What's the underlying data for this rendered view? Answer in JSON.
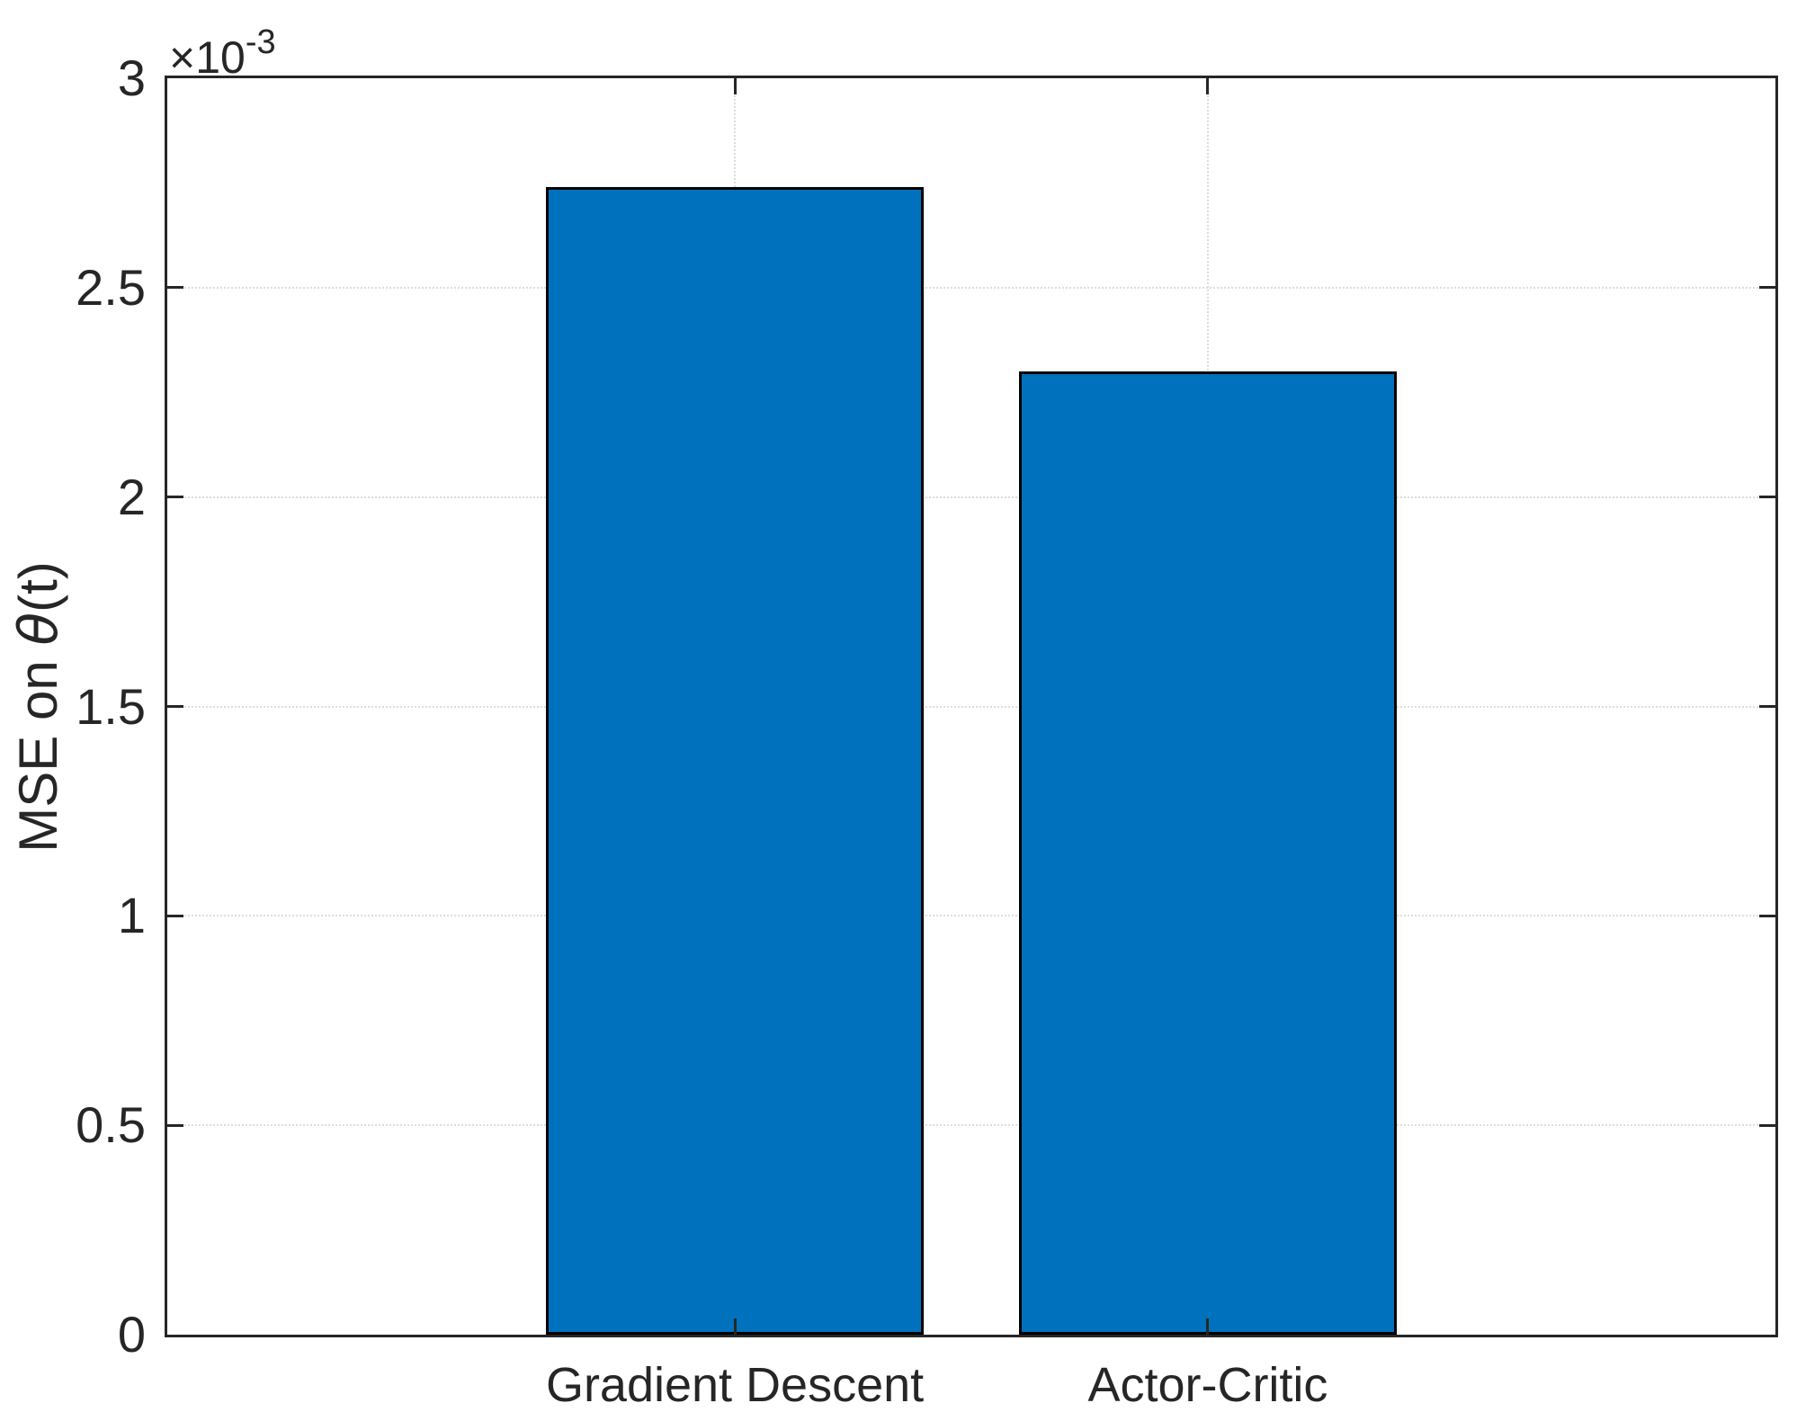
{
  "chart_data": {
    "type": "bar",
    "categories": [
      "Gradient Descent",
      "Actor-Critic"
    ],
    "values": [
      0.00274,
      0.0023
    ],
    "title": "",
    "xlabel": "",
    "ylabel": "MSE on θ(t)",
    "ylabel_parts": {
      "prefix": "MSE on ",
      "theta": "θ",
      "suffix": "(t)"
    },
    "ylim": [
      0,
      0.003
    ],
    "xlim": [
      -0.2,
      3.2
    ],
    "bar_positions": [
      1,
      2
    ],
    "bar_width": 0.8,
    "yticks": [
      0,
      0.0005,
      0.001,
      0.0015,
      0.002,
      0.0025,
      0.003
    ],
    "ytick_labels": [
      "0",
      "0.5",
      "1",
      "1.5",
      "2",
      "2.5",
      "3"
    ],
    "multiplier": {
      "base": "×10",
      "exponent": "-3"
    },
    "grid": true,
    "legend": null,
    "bar_color": "#0072BD",
    "bar_edge_color": "#000000",
    "axis_color": "#262626",
    "grid_color": "#dcdcdc",
    "background_color": "#ffffff"
  }
}
